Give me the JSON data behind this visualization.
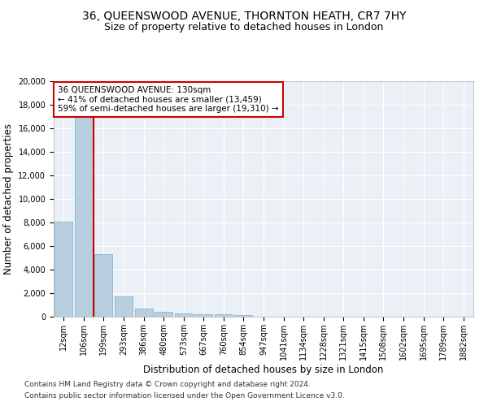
{
  "title": "36, QUEENSWOOD AVENUE, THORNTON HEATH, CR7 7HY",
  "subtitle": "Size of property relative to detached houses in London",
  "xlabel": "Distribution of detached houses by size in London",
  "ylabel": "Number of detached properties",
  "bar_color": "#b8cfe0",
  "bar_edge_color": "#7aaac8",
  "vline_color": "#cc0000",
  "vline_x": 1.5,
  "annotation_box_text": "36 QUEENSWOOD AVENUE: 130sqm\n← 41% of detached houses are smaller (13,459)\n59% of semi-detached houses are larger (19,310) →",
  "annotation_box_color": "#cc0000",
  "footnote1": "Contains HM Land Registry data © Crown copyright and database right 2024.",
  "footnote2": "Contains public sector information licensed under the Open Government Licence v3.0.",
  "categories": [
    "12sqm",
    "106sqm",
    "199sqm",
    "293sqm",
    "386sqm",
    "480sqm",
    "573sqm",
    "667sqm",
    "760sqm",
    "854sqm",
    "947sqm",
    "1041sqm",
    "1134sqm",
    "1228sqm",
    "1321sqm",
    "1415sqm",
    "1508sqm",
    "1602sqm",
    "1695sqm",
    "1789sqm",
    "1882sqm"
  ],
  "values": [
    8100,
    17000,
    5300,
    1750,
    700,
    380,
    280,
    220,
    200,
    150,
    0,
    0,
    0,
    0,
    0,
    0,
    0,
    0,
    0,
    0,
    0
  ],
  "ylim": [
    0,
    20000
  ],
  "yticks": [
    0,
    2000,
    4000,
    6000,
    8000,
    10000,
    12000,
    14000,
    16000,
    18000,
    20000
  ],
  "background_color": "#eaf0f6",
  "grid_color": "#ffffff",
  "title_fontsize": 10,
  "subtitle_fontsize": 9,
  "axis_label_fontsize": 8.5,
  "tick_fontsize": 7,
  "footnote_fontsize": 6.5
}
